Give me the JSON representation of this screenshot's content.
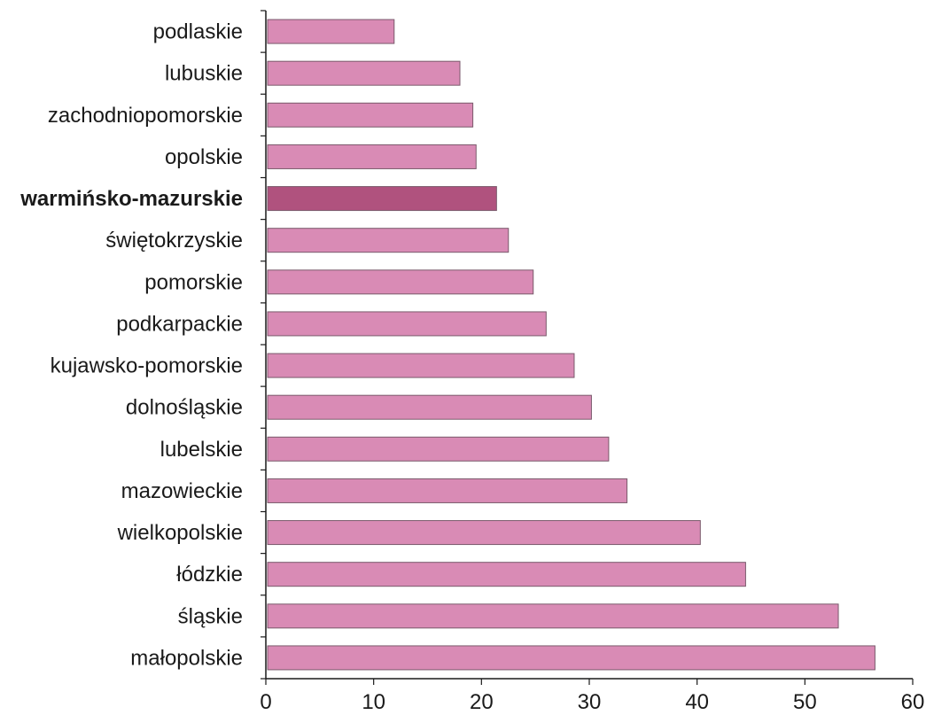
{
  "chart_data": {
    "type": "bar",
    "orientation": "horizontal",
    "title": "",
    "xlabel": "",
    "ylabel": "",
    "xlim": [
      0,
      60
    ],
    "x_ticks": [
      0,
      10,
      20,
      30,
      40,
      50,
      60
    ],
    "grid": false,
    "legend": "none",
    "categories": [
      "podlaskie",
      "lubuskie",
      "zachodniopomorskie",
      "opolskie",
      "warmińsko-mazurskie",
      "świętokrzyskie",
      "pomorskie",
      "podkarpackie",
      "kujawsko-pomorskie",
      "dolnośląskie",
      "lubelskie",
      "mazowieckie",
      "wielkopolskie",
      "łódzkie",
      "śląskie",
      "małopolskie"
    ],
    "values": [
      11.9,
      18.0,
      19.2,
      19.5,
      21.4,
      22.5,
      24.8,
      26.0,
      28.6,
      30.2,
      31.8,
      33.5,
      40.3,
      44.5,
      53.1,
      56.5
    ],
    "highlight": "warmińsko-mazurskie",
    "colors": {
      "bar": "#d98bb5",
      "highlight_bar": "#b0527e",
      "bar_stroke": "#7a5a6c",
      "axis": "#1a1a1a"
    }
  }
}
